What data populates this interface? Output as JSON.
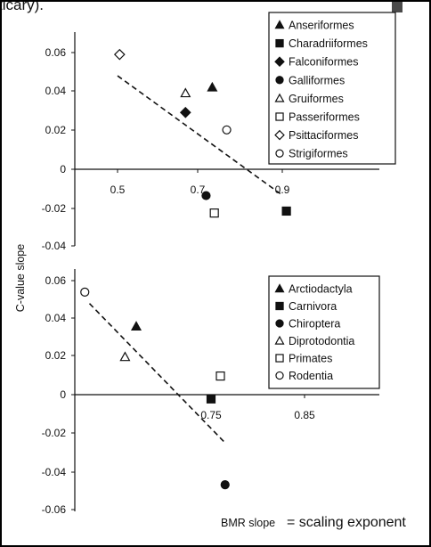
{
  "header_fragment": "ticary).",
  "ylabel": "C-value slope",
  "xlabel": "BMR slope",
  "caption": "= scaling exponent",
  "chart_data": [
    {
      "type": "scatter",
      "panel": "top",
      "xlim": [
        0.39,
        0.96
      ],
      "ylim": [
        -0.04,
        0.07
      ],
      "xticks": [
        "0.5",
        "0.7",
        "0.9"
      ],
      "yticks": [
        "0.06",
        "0.04",
        "0.02",
        "0",
        "-0.02",
        "-0.04"
      ],
      "series": [
        {
          "name": "Anseriformes",
          "marker": "triangle",
          "fill": "filled",
          "points": [
            [
              0.73,
              0.042
            ]
          ]
        },
        {
          "name": "Charadriiformes",
          "marker": "square",
          "fill": "filled",
          "points": [
            [
              0.91,
              -0.022
            ]
          ]
        },
        {
          "name": "Falconiformes",
          "marker": "diamond",
          "fill": "filled",
          "points": [
            [
              0.665,
              0.029
            ]
          ]
        },
        {
          "name": "Galliformes",
          "marker": "circle",
          "fill": "filled",
          "points": [
            [
              0.715,
              -0.014
            ]
          ]
        },
        {
          "name": "Gruiformes",
          "marker": "triangle",
          "fill": "open",
          "points": [
            [
              0.665,
              0.039
            ]
          ]
        },
        {
          "name": "Passeriformes",
          "marker": "square",
          "fill": "open",
          "points": [
            [
              0.735,
              -0.023
            ]
          ]
        },
        {
          "name": "Psittaciformes",
          "marker": "diamond",
          "fill": "open",
          "points": [
            [
              0.505,
              0.059
            ]
          ]
        },
        {
          "name": "Strigiformes",
          "marker": "circle",
          "fill": "open",
          "points": [
            [
              0.765,
              0.02
            ]
          ]
        }
      ],
      "trendline": [
        [
          0.5,
          0.048
        ],
        [
          0.895,
          -0.013
        ]
      ]
    },
    {
      "type": "scatter",
      "panel": "bottom",
      "xlim": [
        0.59,
        0.91
      ],
      "ylim": [
        -0.062,
        0.066
      ],
      "xticks": [
        "0.75",
        "0.85"
      ],
      "yticks": [
        "0.06",
        "0.04",
        "0.02",
        "0",
        "-0.02",
        "-0.04",
        "-0.06"
      ],
      "series": [
        {
          "name": "Arctiodactyla",
          "marker": "triangle",
          "fill": "filled",
          "points": [
            [
              0.67,
              0.036
            ]
          ]
        },
        {
          "name": "Carnivora",
          "marker": "square",
          "fill": "filled",
          "points": [
            [
              0.75,
              -0.002
            ]
          ]
        },
        {
          "name": "Chiroptera",
          "marker": "circle",
          "fill": "filled",
          "points": [
            [
              0.765,
              -0.047
            ]
          ]
        },
        {
          "name": "Diprotodontia",
          "marker": "triangle",
          "fill": "open",
          "points": [
            [
              0.658,
              0.02
            ]
          ]
        },
        {
          "name": "Primates",
          "marker": "square",
          "fill": "open",
          "points": [
            [
              0.76,
              0.01
            ]
          ]
        },
        {
          "name": "Rodentia",
          "marker": "circle",
          "fill": "open",
          "points": [
            [
              0.615,
              0.054
            ]
          ]
        }
      ],
      "trendline": [
        [
          0.62,
          0.048
        ],
        [
          0.765,
          -0.025
        ]
      ]
    }
  ]
}
